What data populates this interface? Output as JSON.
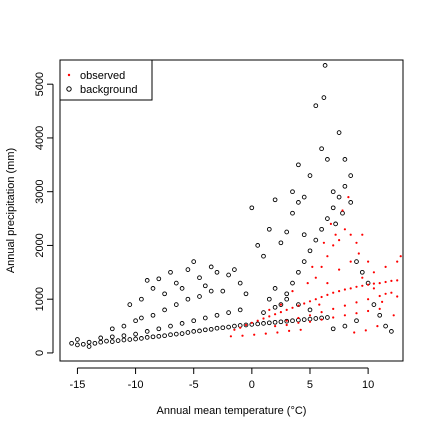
{
  "chart_data": {
    "type": "scatter",
    "title": "",
    "xlabel": "Annual mean temperature (°C)",
    "ylabel": "Annual precipitation (mm)",
    "xlim": [
      -16.5,
      13
    ],
    "ylim": [
      -150,
      5450
    ],
    "x_ticks": [
      -15,
      -10,
      -5,
      0,
      5,
      10
    ],
    "y_ticks": [
      0,
      1000,
      2000,
      3000,
      4000,
      5000
    ],
    "x_tick_labels": [
      "-15",
      "-10",
      "-5",
      "0",
      "5",
      "10"
    ],
    "y_tick_labels": [
      "0",
      "1000",
      "2000",
      "3000",
      "4000",
      "5000"
    ],
    "grid": false,
    "legend_position": "top-left",
    "series": [
      {
        "name": "observed",
        "color": "#ff0000",
        "marker": "point",
        "points": [
          [
            -1.5,
            430
          ],
          [
            -1.0,
            470
          ],
          [
            -0.5,
            520
          ],
          [
            0.0,
            560
          ],
          [
            0.5,
            600
          ],
          [
            1.0,
            640
          ],
          [
            1.5,
            680
          ],
          [
            2.0,
            720
          ],
          [
            2.5,
            760
          ],
          [
            3.0,
            800
          ],
          [
            3.5,
            840
          ],
          [
            4.0,
            880
          ],
          [
            4.5,
            920
          ],
          [
            5.0,
            960
          ],
          [
            5.5,
            1000
          ],
          [
            6.0,
            1040
          ],
          [
            6.5,
            1080
          ],
          [
            7.0,
            1120
          ],
          [
            7.5,
            1150
          ],
          [
            8.0,
            1180
          ],
          [
            8.5,
            1200
          ],
          [
            9.0,
            1230
          ],
          [
            9.5,
            1250
          ],
          [
            10.0,
            1270
          ],
          [
            10.5,
            1290
          ],
          [
            11.0,
            1300
          ],
          [
            11.5,
            1320
          ],
          [
            12.0,
            1340
          ],
          [
            12.5,
            1350
          ],
          [
            3.0,
            600
          ],
          [
            4.0,
            650
          ],
          [
            5.0,
            700
          ],
          [
            6.0,
            760
          ],
          [
            7.0,
            820
          ],
          [
            8.0,
            880
          ],
          [
            9.0,
            940
          ],
          [
            10.0,
            1000
          ],
          [
            11.0,
            1060
          ],
          [
            12.0,
            1120
          ],
          [
            2.0,
            500
          ],
          [
            3.0,
            520
          ],
          [
            4.0,
            560
          ],
          [
            5.0,
            580
          ],
          [
            6.0,
            620
          ],
          [
            7.0,
            660
          ],
          [
            8.0,
            700
          ],
          [
            9.0,
            740
          ],
          [
            10.0,
            780
          ],
          [
            11.0,
            820
          ],
          [
            5.5,
            1400
          ],
          [
            6.0,
            1600
          ],
          [
            6.5,
            1800
          ],
          [
            7.0,
            2000
          ],
          [
            7.5,
            2100
          ],
          [
            8.0,
            2300
          ],
          [
            8.5,
            2200
          ],
          [
            9.0,
            2050
          ],
          [
            6.8,
            2400
          ],
          [
            7.8,
            2650
          ],
          [
            8.3,
            2900
          ],
          [
            9.2,
            1850
          ],
          [
            10.0,
            1700
          ],
          [
            10.5,
            1500
          ],
          [
            11.5,
            1600
          ],
          [
            12.5,
            1700
          ],
          [
            12.8,
            1800
          ],
          [
            9.5,
            2200
          ],
          [
            7.2,
            2200
          ],
          [
            6.2,
            2050
          ],
          [
            5.2,
            1600
          ],
          [
            4.8,
            1300
          ],
          [
            3.5,
            1150
          ],
          [
            2.5,
            900
          ],
          [
            1.5,
            800
          ],
          [
            11.2,
            950
          ],
          [
            12.2,
            700
          ],
          [
            10.8,
            500
          ],
          [
            9.8,
            420
          ],
          [
            8.8,
            380
          ],
          [
            4.2,
            430
          ],
          [
            3.2,
            410
          ],
          [
            2.2,
            380
          ],
          [
            1.2,
            360
          ],
          [
            0.2,
            340
          ],
          [
            -0.8,
            320
          ],
          [
            -1.8,
            310
          ],
          [
            7.5,
            1550
          ],
          [
            8.5,
            1700
          ],
          [
            9.5,
            1400
          ],
          [
            10.5,
            1200
          ],
          [
            11.5,
            1100
          ],
          [
            12.5,
            1050
          ],
          [
            6.5,
            1300
          ],
          [
            5.8,
            900
          ]
        ]
      },
      {
        "name": "background",
        "color": "#000000",
        "marker": "open-circle",
        "points": [
          [
            -15.5,
            180
          ],
          [
            -15.0,
            150
          ],
          [
            -14.5,
            160
          ],
          [
            -14.0,
            200
          ],
          [
            -13.5,
            180
          ],
          [
            -13.0,
            200
          ],
          [
            -12.5,
            220
          ],
          [
            -12.0,
            210
          ],
          [
            -11.5,
            230
          ],
          [
            -11.0,
            240
          ],
          [
            -10.5,
            250
          ],
          [
            -10.0,
            260
          ],
          [
            -9.5,
            270
          ],
          [
            -9.0,
            290
          ],
          [
            -8.5,
            300
          ],
          [
            -8.0,
            310
          ],
          [
            -7.5,
            320
          ],
          [
            -7.0,
            340
          ],
          [
            -6.5,
            350
          ],
          [
            -6.0,
            360
          ],
          [
            -5.5,
            380
          ],
          [
            -5.0,
            400
          ],
          [
            -4.5,
            410
          ],
          [
            -4.0,
            430
          ],
          [
            -3.5,
            440
          ],
          [
            -3.0,
            460
          ],
          [
            -2.5,
            470
          ],
          [
            -2.0,
            480
          ],
          [
            -1.5,
            500
          ],
          [
            -1.0,
            510
          ],
          [
            -0.5,
            520
          ],
          [
            0.0,
            530
          ],
          [
            0.5,
            540
          ],
          [
            1.0,
            550
          ],
          [
            1.5,
            560
          ],
          [
            2.0,
            570
          ],
          [
            2.5,
            580
          ],
          [
            3.0,
            590
          ],
          [
            3.5,
            600
          ],
          [
            4.0,
            610
          ],
          [
            4.5,
            620
          ],
          [
            5.0,
            630
          ],
          [
            5.5,
            640
          ],
          [
            6.0,
            650
          ],
          [
            6.5,
            660
          ],
          [
            -15.0,
            250
          ],
          [
            -14.0,
            120
          ],
          [
            -13.0,
            280
          ],
          [
            -12.0,
            300
          ],
          [
            -11.0,
            320
          ],
          [
            -10.0,
            350
          ],
          [
            -9.0,
            400
          ],
          [
            -8.0,
            450
          ],
          [
            -7.0,
            500
          ],
          [
            -6.0,
            550
          ],
          [
            -5.0,
            600
          ],
          [
            -4.0,
            650
          ],
          [
            -3.0,
            700
          ],
          [
            -2.0,
            750
          ],
          [
            -1.0,
            800
          ],
          [
            -10.5,
            900
          ],
          [
            -9.5,
            1000
          ],
          [
            -9.0,
            1350
          ],
          [
            -8.5,
            1200
          ],
          [
            -8.0,
            1380
          ],
          [
            -7.5,
            1100
          ],
          [
            -7.0,
            1500
          ],
          [
            -6.5,
            1300
          ],
          [
            -6.0,
            1200
          ],
          [
            -5.5,
            1550
          ],
          [
            -5.0,
            1700
          ],
          [
            -4.5,
            1400
          ],
          [
            -4.0,
            1250
          ],
          [
            -3.5,
            1600
          ],
          [
            -3.0,
            1500
          ],
          [
            -2.5,
            1150
          ],
          [
            -2.0,
            1450
          ],
          [
            -1.5,
            1550
          ],
          [
            -1.0,
            1300
          ],
          [
            -0.5,
            1100
          ],
          [
            0.0,
            2700
          ],
          [
            0.5,
            2000
          ],
          [
            1.0,
            1800
          ],
          [
            1.5,
            2300
          ],
          [
            2.0,
            2850
          ],
          [
            2.5,
            2050
          ],
          [
            3.0,
            2250
          ],
          [
            3.5,
            2600
          ],
          [
            4.0,
            2800
          ],
          [
            4.5,
            2200
          ],
          [
            1.5,
            1000
          ],
          [
            2.0,
            1200
          ],
          [
            2.5,
            900
          ],
          [
            3.0,
            1100
          ],
          [
            3.5,
            1300
          ],
          [
            4.0,
            1500
          ],
          [
            4.5,
            1700
          ],
          [
            5.0,
            1900
          ],
          [
            5.5,
            2100
          ],
          [
            6.0,
            2300
          ],
          [
            6.5,
            2500
          ],
          [
            7.0,
            2700
          ],
          [
            7.5,
            2900
          ],
          [
            8.0,
            3100
          ],
          [
            8.5,
            3300
          ],
          [
            3.5,
            3000
          ],
          [
            4.0,
            3500
          ],
          [
            4.5,
            2900
          ],
          [
            5.0,
            3300
          ],
          [
            5.5,
            4600
          ],
          [
            6.0,
            3800
          ],
          [
            6.2,
            4750
          ],
          [
            6.5,
            3600
          ],
          [
            7.0,
            3000
          ],
          [
            7.5,
            4100
          ],
          [
            8.0,
            3600
          ],
          [
            6.3,
            5350
          ],
          [
            7.2,
            2400
          ],
          [
            7.8,
            2600
          ],
          [
            8.5,
            2800
          ],
          [
            9.0,
            1700
          ],
          [
            9.5,
            1500
          ],
          [
            10.0,
            1300
          ],
          [
            10.5,
            900
          ],
          [
            11.0,
            700
          ],
          [
            11.5,
            500
          ],
          [
            12.0,
            400
          ],
          [
            9.0,
            600
          ],
          [
            8.0,
            500
          ],
          [
            7.0,
            450
          ],
          [
            5.0,
            800
          ],
          [
            4.0,
            900
          ],
          [
            3.0,
            1000
          ],
          [
            2.0,
            850
          ],
          [
            1.0,
            750
          ],
          [
            -12.0,
            450
          ],
          [
            -11.0,
            500
          ],
          [
            -10.0,
            600
          ],
          [
            -9.5,
            650
          ],
          [
            -8.5,
            700
          ],
          [
            -7.5,
            800
          ],
          [
            -6.5,
            900
          ],
          [
            -5.5,
            1000
          ],
          [
            -4.5,
            1050
          ],
          [
            -3.5,
            1150
          ]
        ]
      }
    ]
  }
}
